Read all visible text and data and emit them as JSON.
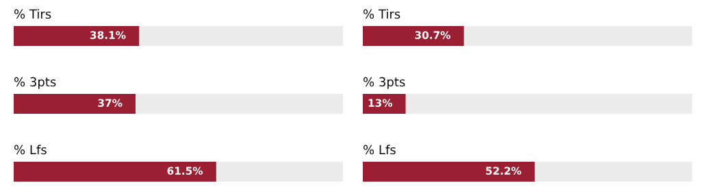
{
  "chart_data": [
    {
      "type": "bar",
      "orientation": "horizontal",
      "categories": [
        "% Tirs",
        "% 3pts",
        "% Lfs"
      ],
      "values": [
        38.1,
        37,
        61.5
      ],
      "value_labels": [
        "38.1%",
        "37%",
        "61.5%"
      ],
      "color": "#9b1f32",
      "xlim": [
        0,
        100
      ],
      "tick_labels": false
    },
    {
      "type": "bar",
      "orientation": "horizontal",
      "categories": [
        "% Tirs",
        "% 3pts",
        "% Lfs"
      ],
      "values": [
        30.7,
        13,
        52.2
      ],
      "value_labels": [
        "30.7%",
        "13%",
        "52.2%"
      ],
      "color": "#9b1f32",
      "xlim": [
        0,
        100
      ],
      "tick_labels": false
    }
  ]
}
